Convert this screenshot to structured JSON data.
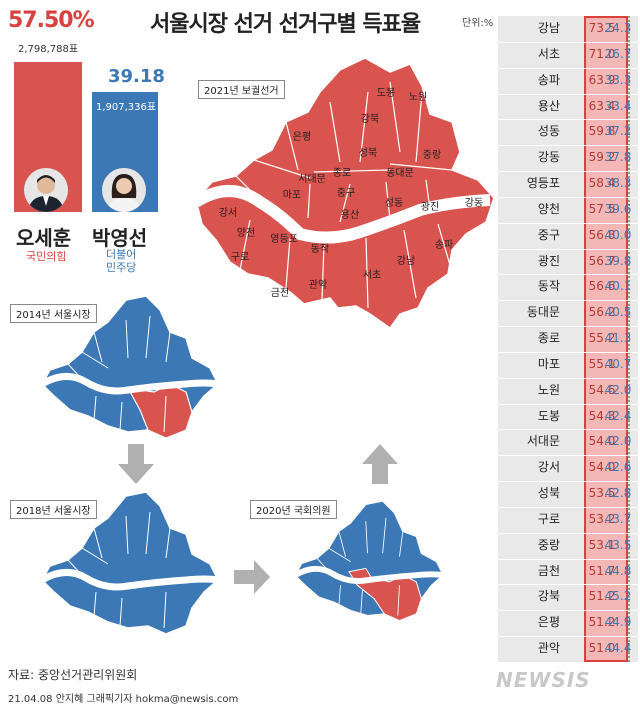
{
  "title": "서울시장 선거 선거구별 득표율",
  "unit": "단위:%",
  "candidates": {
    "left": {
      "name": "오세훈",
      "party": "국민의힘",
      "pct": "57.50%",
      "votes": "2,798,788표"
    },
    "right": {
      "name": "박영선",
      "party_line1": "더불어",
      "party_line2": "민주당",
      "pct": "39.18",
      "votes": "1,907,336표"
    }
  },
  "maps": {
    "m2021": "2021년 보궐선거",
    "m2014": "2014년 서울시장",
    "m2018": "2018년 서울시장",
    "m2020": "2020년 국회의원"
  },
  "districts_2021": [
    "도봉",
    "노원",
    "강북",
    "은평",
    "성북",
    "중랑",
    "종로",
    "서대문",
    "동대문",
    "강서",
    "마포",
    "중구",
    "성동",
    "광진",
    "강동",
    "양천",
    "영등포",
    "용산",
    "구로",
    "동작",
    "송파",
    "금천",
    "관악",
    "서초",
    "강남"
  ],
  "source": "자료: 중앙선거관리위원회",
  "credit": "21.04.08 안지혜 그래픽기자 hokma@newsis.com",
  "logo": "NEWSIS",
  "colors": {
    "red": "#d9413c",
    "blue": "#3c78b5"
  },
  "chart_data": {
    "type": "table",
    "title": "서울시장 선거 선거구별 득표율",
    "unit": "%",
    "series": [
      {
        "name": "오세훈",
        "values": [
          73.5,
          71.0,
          63.9,
          63.4,
          59.8,
          59.2,
          58.4,
          57.5,
          56.8,
          56.7,
          56.6,
          56.2,
          55.2,
          55.1,
          54.6,
          54.3,
          54.0,
          54.0,
          53.5,
          53.2,
          53.1,
          51.7,
          51.2,
          51.2,
          51.0
        ]
      },
      {
        "name": "박영선",
        "values": [
          24.3,
          26.7,
          33.3,
          33.4,
          37.2,
          37.8,
          38.3,
          39.6,
          40.0,
          39.8,
          40.1,
          40.5,
          41.3,
          40.7,
          42.0,
          42.4,
          42.0,
          42.6,
          42.8,
          43.7,
          43.5,
          44.8,
          45.2,
          44.9,
          44.4
        ]
      }
    ],
    "categories": [
      "강남",
      "서초",
      "송파",
      "용산",
      "성동",
      "강동",
      "영등포",
      "양천",
      "중구",
      "광진",
      "동작",
      "동대문",
      "종로",
      "마포",
      "노원",
      "도봉",
      "서대문",
      "강서",
      "성북",
      "구로",
      "중랑",
      "금천",
      "강북",
      "은평",
      "관악"
    ],
    "left_display": [
      "73.5",
      "71.0",
      "63.9",
      "63.4",
      "59.8",
      "59.2",
      "58.4",
      "57.5",
      "56.8",
      "56.7",
      "56.6",
      "56.2",
      "55.2",
      "55.1",
      "54.6",
      "54.3",
      "54.0",
      "54.0",
      "53.5",
      "53.2",
      "53.1",
      "51.7",
      "51.2",
      "51.2",
      "51.0"
    ],
    "right_display": [
      "24.3",
      "26.7",
      "33.3",
      "33.4",
      "37.2",
      "37.8",
      "38.3",
      "39.6",
      "40.0",
      "39.8",
      "40.1",
      "40.5",
      "41.3",
      "40.7",
      "42.0",
      "42.4",
      "42.0",
      "42.6",
      "42.8",
      "43.7",
      "43.5",
      "44.8",
      "45.2",
      "44.9",
      "44.4"
    ]
  }
}
